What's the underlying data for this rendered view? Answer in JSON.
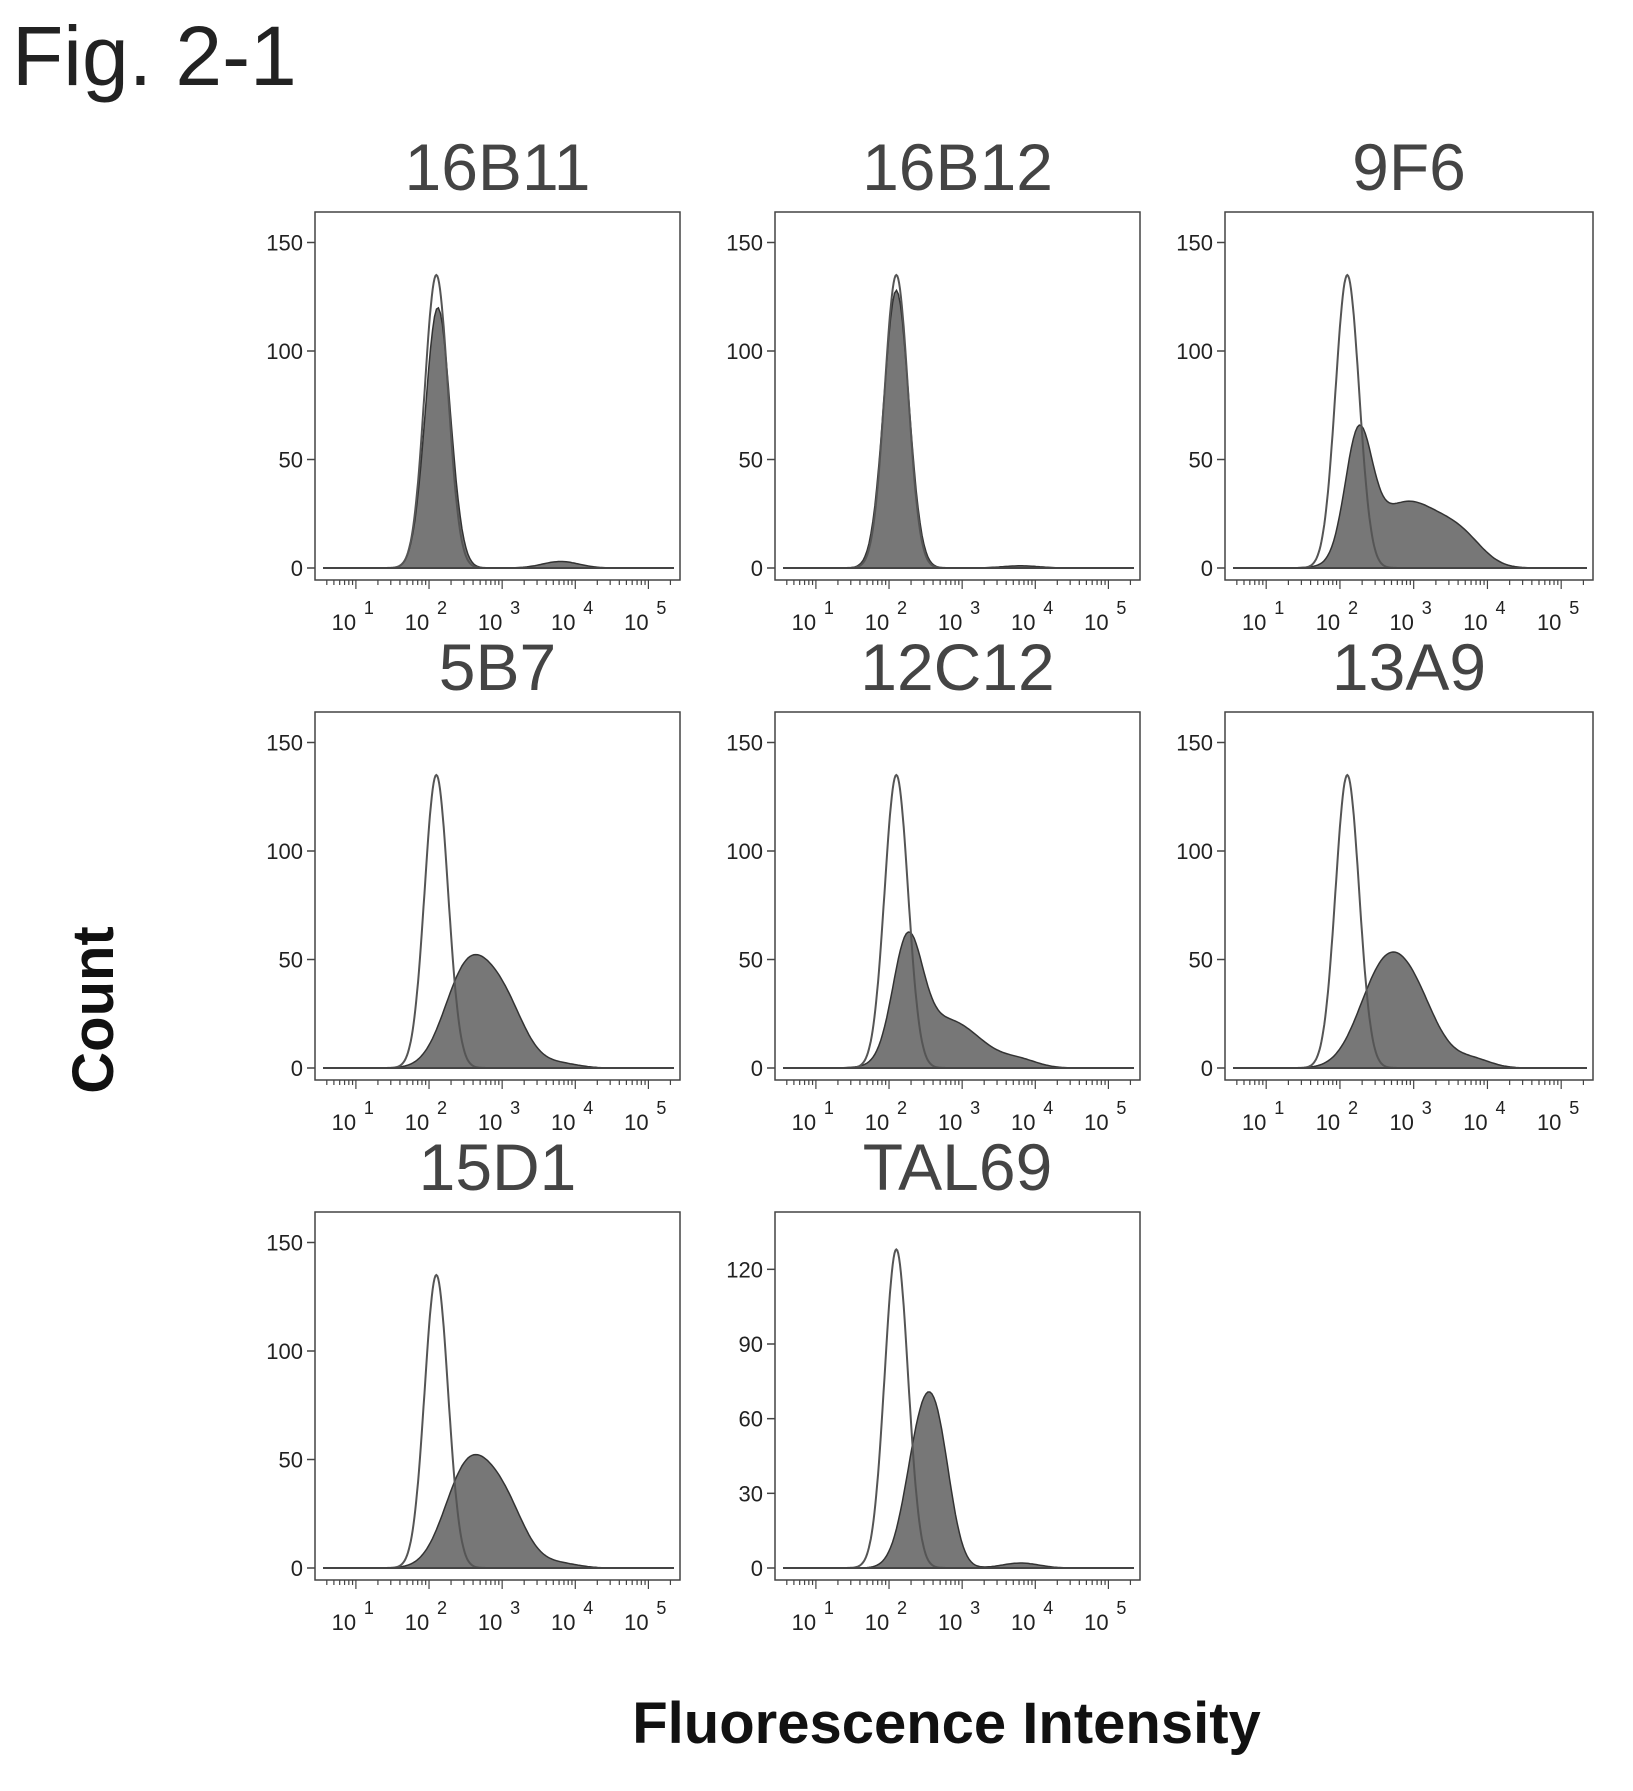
{
  "figure": {
    "title": "Fig. 2-1",
    "ylabel": "Count",
    "xlabel": "Fluorescence Intensity"
  },
  "colors": {
    "fill": "#777777",
    "outline": "#333333",
    "control": "#555555",
    "frame": "#444444"
  },
  "chart_data": [
    {
      "type": "histogram",
      "title": "16B11",
      "x_scale": "log",
      "x_ticks": [
        "10",
        "10",
        "10",
        "10",
        "10"
      ],
      "x_tick_exponents": [
        "1",
        "2",
        "3",
        "4",
        "5"
      ],
      "y_ticks": [
        "0",
        "50",
        "100",
        "150"
      ],
      "ylim": [
        0,
        150
      ],
      "control": {
        "peak_log10": 2.1,
        "peak_count": 135,
        "width": 0.16
      },
      "stained": {
        "components": [
          {
            "center_log10": 2.12,
            "peak_count": 120,
            "width": 0.17
          }
        ],
        "tail": 3
      }
    },
    {
      "type": "histogram",
      "title": "16B12",
      "x_scale": "log",
      "x_ticks": [
        "10",
        "10",
        "10",
        "10",
        "10"
      ],
      "x_tick_exponents": [
        "1",
        "2",
        "3",
        "4",
        "5"
      ],
      "y_ticks": [
        "0",
        "50",
        "100",
        "150"
      ],
      "ylim": [
        0,
        150
      ],
      "control": {
        "peak_log10": 2.1,
        "peak_count": 135,
        "width": 0.16
      },
      "stained": {
        "components": [
          {
            "center_log10": 2.1,
            "peak_count": 128,
            "width": 0.17
          }
        ],
        "tail": 1
      }
    },
    {
      "type": "histogram",
      "title": "9F6",
      "x_scale": "log",
      "x_ticks": [
        "10",
        "10",
        "10",
        "10",
        "10"
      ],
      "x_tick_exponents": [
        "1",
        "2",
        "3",
        "4",
        "5"
      ],
      "y_ticks": [
        "0",
        "50",
        "100",
        "150"
      ],
      "ylim": [
        0,
        150
      ],
      "control": {
        "peak_log10": 2.1,
        "peak_count": 135,
        "width": 0.16
      },
      "stained": {
        "components": [
          {
            "center_log10": 2.25,
            "peak_count": 55,
            "width": 0.18
          },
          {
            "center_log10": 2.9,
            "peak_count": 30,
            "width": 0.45
          },
          {
            "center_log10": 3.6,
            "peak_count": 10,
            "width": 0.3
          }
        ],
        "tail": 2
      }
    },
    {
      "type": "histogram",
      "title": "5B7",
      "x_scale": "log",
      "x_ticks": [
        "10",
        "10",
        "10",
        "10",
        "10"
      ],
      "x_tick_exponents": [
        "1",
        "2",
        "3",
        "4",
        "5"
      ],
      "y_ticks": [
        "0",
        "50",
        "100",
        "150"
      ],
      "ylim": [
        0,
        150
      ],
      "control": {
        "peak_log10": 2.1,
        "peak_count": 135,
        "width": 0.16
      },
      "stained": {
        "components": [
          {
            "center_log10": 2.5,
            "peak_count": 42,
            "width": 0.3
          },
          {
            "center_log10": 3.0,
            "peak_count": 30,
            "width": 0.3
          }
        ],
        "tail": 2
      }
    },
    {
      "type": "histogram",
      "title": "12C12",
      "x_scale": "log",
      "x_ticks": [
        "10",
        "10",
        "10",
        "10",
        "10"
      ],
      "x_tick_exponents": [
        "1",
        "2",
        "3",
        "4",
        "5"
      ],
      "y_ticks": [
        "0",
        "50",
        "100",
        "150"
      ],
      "ylim": [
        0,
        150
      ],
      "control": {
        "peak_log10": 2.1,
        "peak_count": 135,
        "width": 0.16
      },
      "stained": {
        "components": [
          {
            "center_log10": 2.25,
            "peak_count": 52,
            "width": 0.2
          },
          {
            "center_log10": 2.8,
            "peak_count": 22,
            "width": 0.45
          }
        ],
        "tail": 3
      }
    },
    {
      "type": "histogram",
      "title": "13A9",
      "x_scale": "log",
      "x_ticks": [
        "10",
        "10",
        "10",
        "10",
        "10"
      ],
      "x_tick_exponents": [
        "1",
        "2",
        "3",
        "4",
        "5"
      ],
      "y_ticks": [
        "0",
        "50",
        "100",
        "150"
      ],
      "ylim": [
        0,
        150
      ],
      "control": {
        "peak_log10": 2.1,
        "peak_count": 135,
        "width": 0.16
      },
      "stained": {
        "components": [
          {
            "center_log10": 2.55,
            "peak_count": 38,
            "width": 0.32
          },
          {
            "center_log10": 3.0,
            "peak_count": 30,
            "width": 0.32
          }
        ],
        "tail": 4
      }
    },
    {
      "type": "histogram",
      "title": "15D1",
      "x_scale": "log",
      "x_ticks": [
        "10",
        "10",
        "10",
        "10",
        "10"
      ],
      "x_tick_exponents": [
        "1",
        "2",
        "3",
        "4",
        "5"
      ],
      "y_ticks": [
        "0",
        "50",
        "100",
        "150"
      ],
      "ylim": [
        0,
        150
      ],
      "control": {
        "peak_log10": 2.1,
        "peak_count": 135,
        "width": 0.16
      },
      "stained": {
        "components": [
          {
            "center_log10": 2.5,
            "peak_count": 42,
            "width": 0.3
          },
          {
            "center_log10": 3.0,
            "peak_count": 30,
            "width": 0.3
          }
        ],
        "tail": 2
      }
    },
    {
      "type": "histogram",
      "title": "TAL69",
      "x_scale": "log",
      "x_ticks": [
        "10",
        "10",
        "10",
        "10",
        "10"
      ],
      "x_tick_exponents": [
        "1",
        "2",
        "3",
        "4",
        "5"
      ],
      "y_ticks": [
        "0",
        "30",
        "60",
        "90",
        "120"
      ],
      "ylim": [
        0,
        135
      ],
      "control": {
        "peak_log10": 2.1,
        "peak_count": 128,
        "width": 0.16
      },
      "stained": {
        "components": [
          {
            "center_log10": 2.45,
            "peak_count": 55,
            "width": 0.22
          },
          {
            "center_log10": 2.7,
            "peak_count": 30,
            "width": 0.18
          }
        ],
        "tail": 2
      }
    }
  ]
}
